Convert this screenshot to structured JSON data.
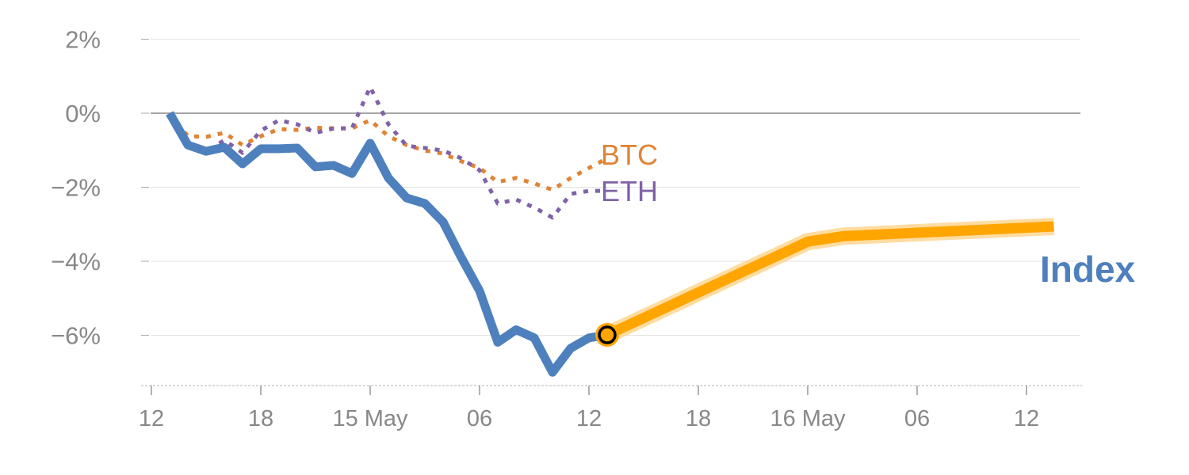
{
  "chart_data": {
    "type": "line",
    "title": "",
    "xlabel": "",
    "ylabel": "",
    "x_unit": "hours since 14 May 12:00",
    "xlim": [
      0,
      51
    ],
    "ylim": [
      -7.36,
      2
    ],
    "grid": true,
    "y_ticks": [
      {
        "value": 2,
        "label": "2%"
      },
      {
        "value": 0,
        "label": "0%"
      },
      {
        "value": -2,
        "label": "−2%"
      },
      {
        "value": -4,
        "label": "−4%"
      },
      {
        "value": -6,
        "label": "−6%"
      }
    ],
    "x_ticks": [
      {
        "value": 0,
        "label": "12"
      },
      {
        "value": 6,
        "label": "18"
      },
      {
        "value": 12,
        "label": "15 May"
      },
      {
        "value": 18,
        "label": "06"
      },
      {
        "value": 24,
        "label": "12"
      },
      {
        "value": 30,
        "label": "18"
      },
      {
        "value": 36,
        "label": "16 May"
      },
      {
        "value": 42,
        "label": "06"
      },
      {
        "value": 48,
        "label": "12"
      }
    ],
    "x": [
      1,
      2,
      3,
      4,
      5,
      6,
      7,
      8,
      9,
      10,
      11,
      12,
      13,
      14,
      15,
      16,
      17,
      18,
      19,
      20,
      21,
      22,
      23,
      24,
      25
    ],
    "series": [
      {
        "name": "Index",
        "label": "Index",
        "color": "#4e80bd",
        "style": "solid",
        "values": [
          0,
          -0.86,
          -1.03,
          -0.92,
          -1.37,
          -0.96,
          -0.96,
          -0.94,
          -1.45,
          -1.41,
          -1.63,
          -0.81,
          -1.75,
          -2.29,
          -2.44,
          -2.94,
          -3.9,
          -4.8,
          -6.19,
          -5.85,
          -6.07,
          -7.0,
          -6.35,
          -6.07,
          -5.99
        ]
      },
      {
        "name": "BTC",
        "label": "BTC",
        "color": "#e08436",
        "style": "dotted",
        "values": [
          0,
          -0.62,
          -0.64,
          -0.53,
          -0.86,
          -0.62,
          -0.43,
          -0.45,
          -0.39,
          -0.41,
          -0.41,
          -0.19,
          -0.62,
          -0.86,
          -1.01,
          -1.09,
          -1.3,
          -1.48,
          -1.86,
          -1.75,
          -1.9,
          -2.07,
          -1.75,
          -1.48,
          -1.22
        ]
      },
      {
        "name": "ETH",
        "label": "ETH",
        "color": "#8062a8",
        "style": "dotted",
        "values": [
          0,
          -0.86,
          -1.03,
          -0.73,
          -1.07,
          -0.47,
          -0.19,
          -0.3,
          -0.53,
          -0.41,
          -0.41,
          0.71,
          -0.3,
          -0.88,
          -0.94,
          -1.01,
          -1.22,
          -1.54,
          -2.44,
          -2.33,
          -2.55,
          -2.82,
          -2.18,
          -2.1,
          -2.1
        ]
      }
    ],
    "forecast": {
      "name": "Index forecast",
      "color": "#ffa500",
      "x": [
        25,
        36,
        38,
        49.5
      ],
      "values": [
        -5.99,
        -3.47,
        -3.32,
        -3.06
      ]
    },
    "marker": {
      "x": 25,
      "value": -5.99
    }
  }
}
